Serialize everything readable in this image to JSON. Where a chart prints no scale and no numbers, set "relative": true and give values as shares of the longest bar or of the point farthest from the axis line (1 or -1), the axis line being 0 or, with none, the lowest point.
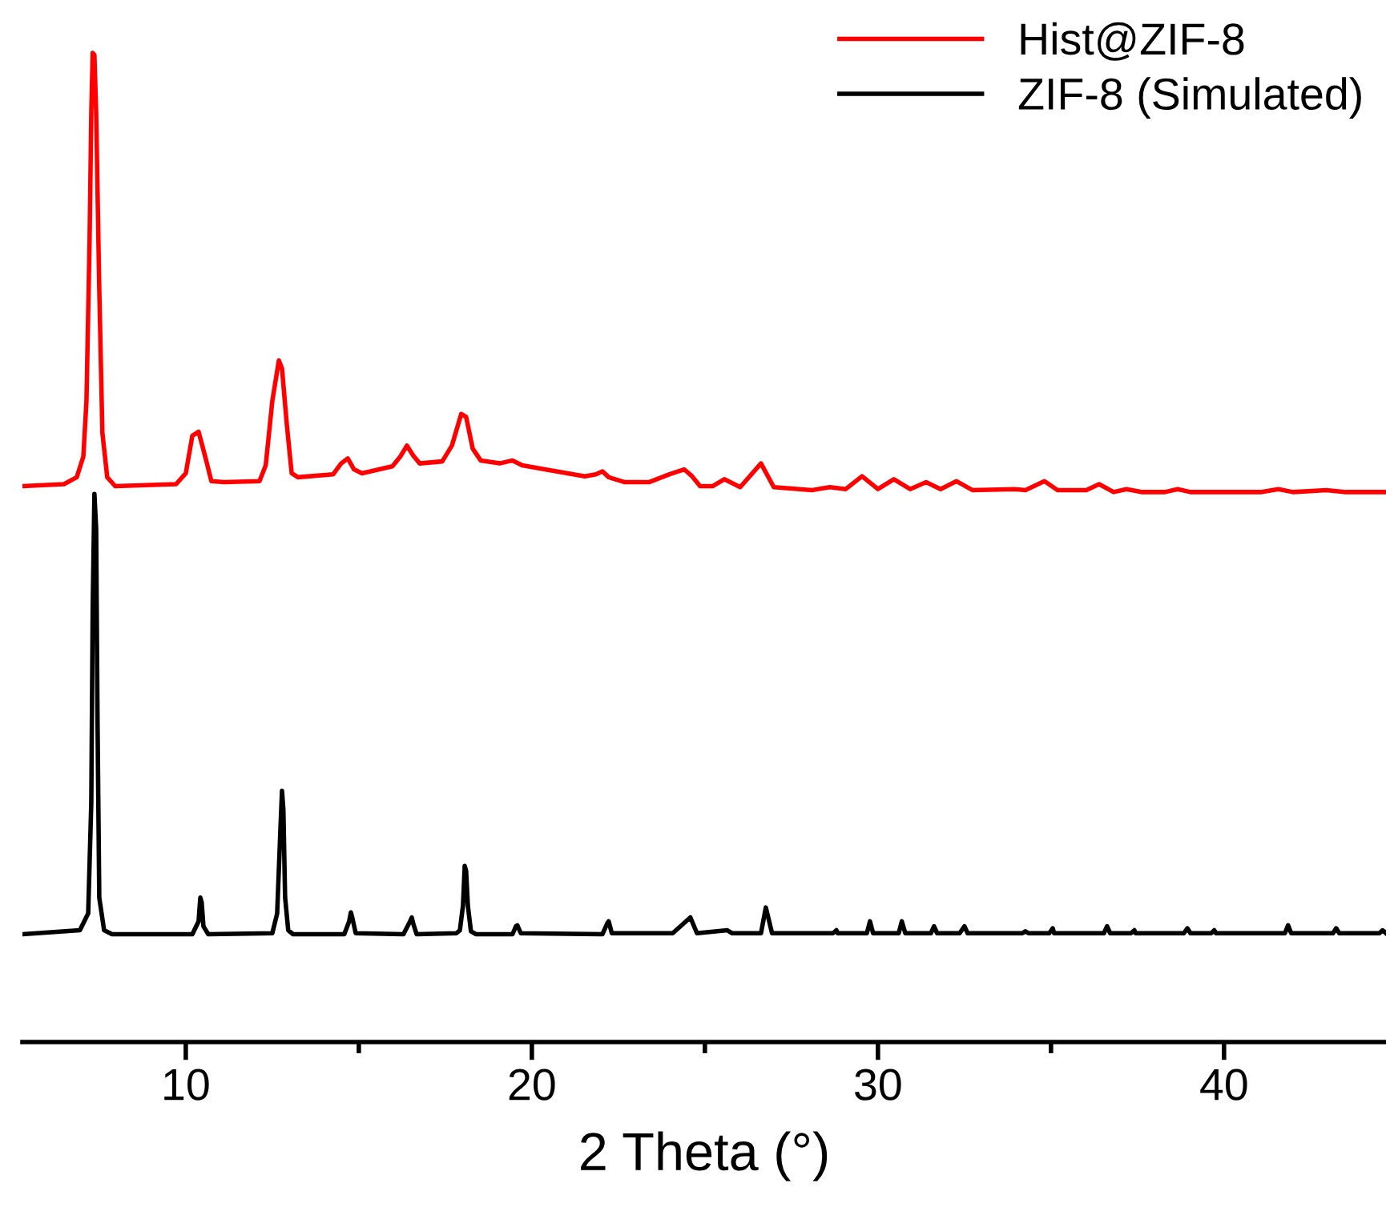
{
  "chart_data": {
    "type": "line",
    "relative": true,
    "xlabel": "2 Theta (°)",
    "xlim": [
      5.28,
      44.68
    ],
    "xticks": [
      10,
      {
        "value": 15,
        "label": null
      },
      20,
      {
        "value": 25,
        "label": null
      },
      30,
      {
        "value": 35,
        "label": null
      },
      40
    ],
    "legend": "top right",
    "grid": false,
    "marker": "none",
    "line_style": "solid",
    "tick_labels": "x",
    "series": [
      {
        "name": "Hist@ZIF-8",
        "color": "#ff0000",
        "x": [
          5.28,
          6.48,
          6.85,
          7.04,
          7.13,
          7.22,
          7.27,
          7.31,
          7.36,
          7.41,
          7.5,
          7.59,
          7.73,
          7.96,
          9.72,
          10.0,
          10.19,
          10.37,
          10.56,
          10.74,
          11.11,
          12.13,
          12.31,
          12.5,
          12.69,
          12.78,
          12.92,
          13.06,
          13.24,
          14.26,
          14.49,
          14.68,
          14.86,
          15.09,
          15.97,
          16.2,
          16.39,
          16.57,
          16.76,
          17.41,
          17.69,
          17.96,
          18.1,
          18.29,
          18.52,
          19.07,
          19.44,
          19.72,
          20.37,
          21.53,
          21.85,
          22.04,
          22.22,
          22.69,
          23.38,
          23.98,
          24.4,
          24.63,
          24.86,
          25.23,
          25.56,
          26.02,
          26.62,
          26.99,
          28.1,
          28.61,
          29.07,
          29.54,
          30.0,
          30.46,
          30.93,
          31.39,
          31.81,
          32.27,
          32.73,
          33.94,
          34.26,
          34.81,
          35.19,
          36.02,
          36.39,
          36.81,
          37.18,
          37.64,
          38.29,
          38.66,
          39.03,
          39.95,
          41.06,
          41.57,
          41.99,
          42.96,
          43.52,
          44.12,
          44.68
        ],
        "values": [
          0.562,
          0.564,
          0.571,
          0.592,
          0.648,
          0.81,
          0.94,
          1.0,
          0.998,
          0.94,
          0.762,
          0.616,
          0.571,
          0.562,
          0.564,
          0.575,
          0.613,
          0.617,
          0.592,
          0.567,
          0.566,
          0.567,
          0.583,
          0.648,
          0.689,
          0.681,
          0.624,
          0.575,
          0.571,
          0.574,
          0.585,
          0.59,
          0.579,
          0.575,
          0.582,
          0.592,
          0.603,
          0.593,
          0.585,
          0.587,
          0.603,
          0.635,
          0.632,
          0.6,
          0.588,
          0.585,
          0.588,
          0.583,
          0.579,
          0.572,
          0.574,
          0.577,
          0.571,
          0.566,
          0.566,
          0.574,
          0.579,
          0.572,
          0.562,
          0.562,
          0.569,
          0.561,
          0.585,
          0.561,
          0.558,
          0.561,
          0.559,
          0.572,
          0.559,
          0.569,
          0.559,
          0.566,
          0.559,
          0.567,
          0.558,
          0.559,
          0.558,
          0.567,
          0.558,
          0.558,
          0.564,
          0.556,
          0.559,
          0.556,
          0.556,
          0.559,
          0.556,
          0.556,
          0.556,
          0.559,
          0.556,
          0.558,
          0.556,
          0.556,
          0.556
        ]
      },
      {
        "name": "ZIF-8 (Simulated)",
        "color": "#000000",
        "x": [
          5.28,
          6.94,
          7.18,
          7.27,
          7.31,
          7.36,
          7.41,
          7.45,
          7.5,
          7.64,
          7.87,
          10.19,
          10.37,
          10.42,
          10.46,
          10.51,
          10.65,
          12.5,
          12.64,
          12.73,
          12.78,
          12.82,
          12.87,
          12.96,
          13.1,
          14.58,
          14.72,
          14.77,
          14.81,
          14.91,
          16.29,
          16.48,
          16.53,
          16.57,
          16.67,
          17.82,
          17.92,
          18.01,
          18.06,
          18.1,
          18.15,
          18.24,
          18.38,
          19.44,
          19.54,
          19.58,
          19.68,
          22.04,
          22.18,
          22.22,
          22.31,
          24.07,
          24.58,
          24.77,
          25.65,
          25.79,
          26.62,
          26.76,
          26.94,
          28.7,
          28.8,
          28.84,
          29.68,
          29.77,
          29.86,
          30.6,
          30.69,
          30.79,
          31.53,
          31.62,
          31.71,
          32.36,
          32.5,
          32.59,
          34.17,
          34.26,
          34.35,
          34.95,
          35.05,
          35.09,
          36.53,
          36.62,
          36.71,
          37.31,
          37.41,
          37.45,
          38.84,
          38.94,
          39.03,
          39.63,
          39.72,
          39.77,
          41.76,
          41.85,
          41.94,
          43.15,
          43.24,
          43.33,
          44.49,
          44.58,
          44.68
        ],
        "values": [
          0.109,
          0.113,
          0.13,
          0.243,
          0.438,
          0.554,
          0.519,
          0.324,
          0.146,
          0.113,
          0.109,
          0.109,
          0.122,
          0.146,
          0.141,
          0.117,
          0.109,
          0.11,
          0.13,
          0.211,
          0.254,
          0.235,
          0.146,
          0.113,
          0.109,
          0.109,
          0.122,
          0.131,
          0.126,
          0.11,
          0.109,
          0.122,
          0.126,
          0.12,
          0.109,
          0.11,
          0.113,
          0.138,
          0.178,
          0.173,
          0.138,
          0.112,
          0.109,
          0.109,
          0.117,
          0.118,
          0.11,
          0.109,
          0.12,
          0.122,
          0.11,
          0.11,
          0.126,
          0.11,
          0.113,
          0.11,
          0.11,
          0.136,
          0.11,
          0.11,
          0.113,
          0.11,
          0.11,
          0.122,
          0.11,
          0.11,
          0.122,
          0.11,
          0.11,
          0.117,
          0.11,
          0.11,
          0.117,
          0.11,
          0.11,
          0.112,
          0.11,
          0.11,
          0.115,
          0.11,
          0.11,
          0.117,
          0.11,
          0.11,
          0.113,
          0.11,
          0.11,
          0.115,
          0.11,
          0.11,
          0.113,
          0.11,
          0.11,
          0.118,
          0.11,
          0.11,
          0.115,
          0.11,
          0.11,
          0.113,
          0.11
        ]
      }
    ]
  }
}
